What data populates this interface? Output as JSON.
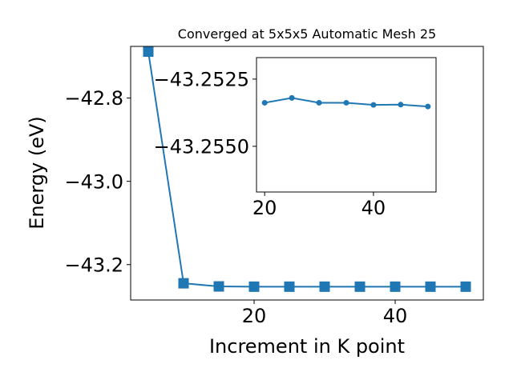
{
  "chart_data": [
    {
      "type": "line",
      "title": "Converged at 5x5x5 Automatic Mesh 25",
      "xlabel": "Increment in K point",
      "ylabel": "Energy (eV)",
      "xlim": [
        2.5,
        52.5
      ],
      "ylim": [
        -43.285,
        -42.676
      ],
      "xticks": [
        20,
        40
      ],
      "xtick_labels": [
        "20",
        "40"
      ],
      "yticks": [
        -42.8,
        -43.0,
        -43.2
      ],
      "ytick_labels": [
        "−42.8",
        "−43.0",
        "−43.2"
      ],
      "marker": "square",
      "color": "#1f77b4",
      "grid": false,
      "series": [
        {
          "x": [
            5,
            10,
            15,
            20,
            25,
            30,
            35,
            40,
            45,
            50
          ],
          "y": [
            -42.6885,
            -43.2449,
            -43.2524,
            -43.253,
            -43.253,
            -43.253,
            -43.253,
            -43.253,
            -43.253,
            -43.253
          ]
        }
      ]
    },
    {
      "type": "line",
      "inset": true,
      "xlabel": "",
      "ylabel": "",
      "xlim": [
        18.5,
        51.5
      ],
      "ylim": [
        -43.2567,
        -43.2517
      ],
      "xticks": [
        20,
        40
      ],
      "xtick_labels": [
        "20",
        "40"
      ],
      "yticks": [
        -43.255,
        -43.2525
      ],
      "ytick_labels": [
        "−43.2550",
        "−43.2525"
      ],
      "marker": "circle",
      "color": "#1f77b4",
      "grid": false,
      "series": [
        {
          "x": [
            20,
            25,
            30,
            35,
            40,
            45,
            50
          ],
          "y": [
            -43.25338,
            -43.2532,
            -43.25338,
            -43.25338,
            -43.25346,
            -43.25345,
            -43.25352
          ]
        }
      ]
    }
  ]
}
